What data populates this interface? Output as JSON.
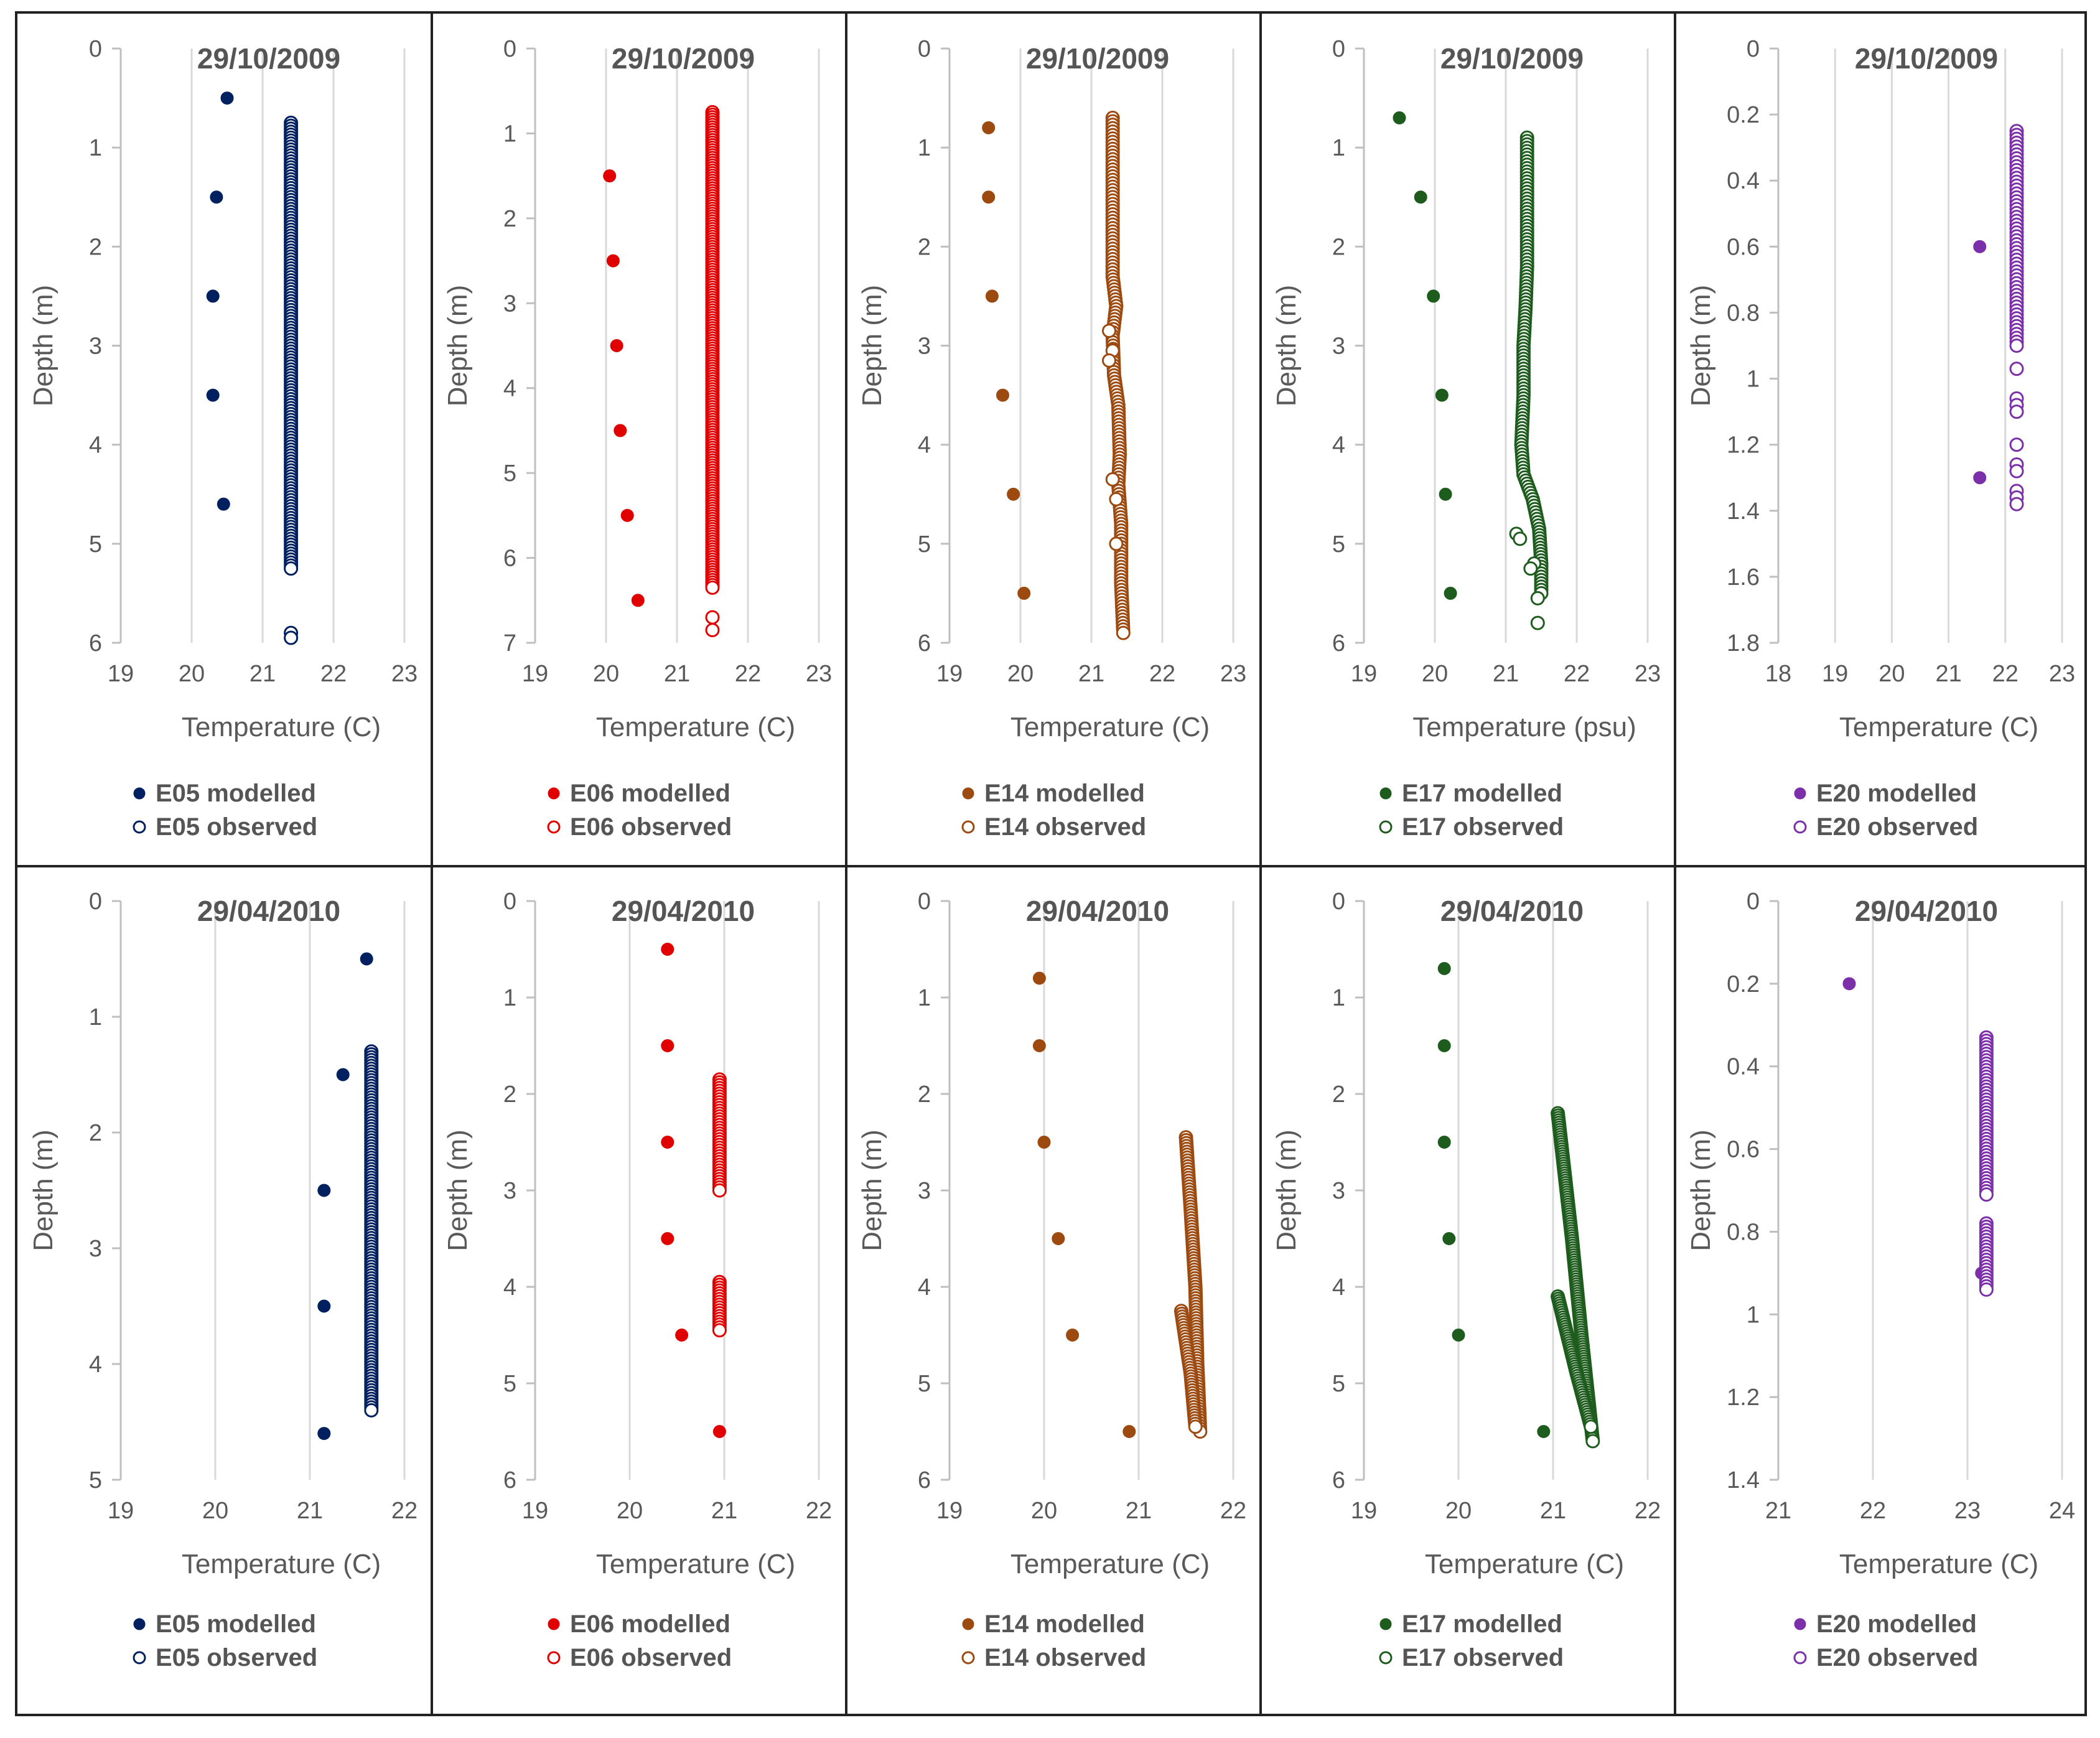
{
  "chart_data": [
    {
      "type": "scatter",
      "panel": "top-1",
      "title": "29/10/2009",
      "xlabel": "Temperature (C)",
      "ylabel": "Depth (m)",
      "xlim": [
        19,
        23
      ],
      "ylim": [
        0,
        6
      ],
      "y_inverted": true,
      "xticks": [
        "19",
        "20",
        "21",
        "22",
        "23"
      ],
      "yticks": [
        "0",
        "1",
        "2",
        "3",
        "4",
        "5",
        "6"
      ],
      "color": "#002060",
      "grid": "vertical",
      "series": [
        {
          "name": "E05 modelled",
          "marker": "filled",
          "points": [
            [
              20.5,
              0.5
            ],
            [
              20.35,
              1.5
            ],
            [
              20.3,
              2.5
            ],
            [
              20.3,
              3.5
            ],
            [
              20.45,
              4.6
            ]
          ]
        },
        {
          "name": "E05 observed",
          "marker": "open",
          "profile": [
            [
              21.4,
              0.75
            ],
            [
              21.4,
              5.25
            ]
          ],
          "step": 0.03,
          "extra_points": [
            [
              21.4,
              5.9
            ],
            [
              21.4,
              5.95
            ]
          ]
        }
      ],
      "legend": [
        "E05 modelled",
        "E05 observed"
      ]
    },
    {
      "type": "scatter",
      "panel": "top-2",
      "title": "29/10/2009",
      "xlabel": "Temperature (C)",
      "ylabel": "Depth (m)",
      "xlim": [
        19,
        23
      ],
      "ylim": [
        0,
        7
      ],
      "y_inverted": true,
      "xticks": [
        "19",
        "20",
        "21",
        "22",
        "23"
      ],
      "yticks": [
        "0",
        "1",
        "2",
        "3",
        "4",
        "5",
        "6",
        "7"
      ],
      "color": "#E00000",
      "grid": "vertical",
      "series": [
        {
          "name": "E06 modelled",
          "marker": "filled",
          "points": [
            [
              20.05,
              1.5
            ],
            [
              20.1,
              2.5
            ],
            [
              20.15,
              3.5
            ],
            [
              20.2,
              4.5
            ],
            [
              20.3,
              5.5
            ],
            [
              20.45,
              6.5
            ]
          ]
        },
        {
          "name": "E06 observed",
          "marker": "open",
          "profile": [
            [
              21.5,
              0.75
            ],
            [
              21.5,
              6.35
            ]
          ],
          "step": 0.03,
          "extra_points": [
            [
              21.5,
              6.7
            ],
            [
              21.5,
              6.85
            ]
          ]
        }
      ],
      "legend": [
        "E06 modelled",
        "E06 observed"
      ]
    },
    {
      "type": "scatter",
      "panel": "top-3",
      "title": "29/10/2009",
      "xlabel": "Temperature (C)",
      "ylabel": "Depth (m)",
      "xlim": [
        19,
        23
      ],
      "ylim": [
        0,
        6
      ],
      "y_inverted": true,
      "xticks": [
        "19",
        "20",
        "21",
        "22",
        "23"
      ],
      "yticks": [
        "0",
        "1",
        "2",
        "3",
        "4",
        "5",
        "6"
      ],
      "color": "#9C4A10",
      "grid": "vertical",
      "series": [
        {
          "name": "E14 modelled",
          "marker": "filled",
          "points": [
            [
              19.55,
              0.8
            ],
            [
              19.55,
              1.5
            ],
            [
              19.6,
              2.5
            ],
            [
              19.75,
              3.5
            ],
            [
              19.9,
              4.5
            ],
            [
              20.05,
              5.5
            ]
          ]
        },
        {
          "name": "E14 observed",
          "marker": "open",
          "profile": [
            [
              21.3,
              0.7
            ],
            [
              21.3,
              1.5
            ],
            [
              21.3,
              2.3
            ],
            [
              21.35,
              2.6
            ],
            [
              21.3,
              2.9
            ],
            [
              21.32,
              3.3
            ],
            [
              21.38,
              3.6
            ],
            [
              21.4,
              4.1
            ],
            [
              21.38,
              4.4
            ],
            [
              21.42,
              4.8
            ],
            [
              21.42,
              5.4
            ],
            [
              21.45,
              5.9
            ]
          ],
          "step": 0.035
        },
        {
          "name": "E14 observed (scatter)",
          "marker": "open",
          "points": [
            [
              21.25,
              2.85
            ],
            [
              21.3,
              3.05
            ],
            [
              21.25,
              3.15
            ],
            [
              21.3,
              4.35
            ],
            [
              21.35,
              4.55
            ],
            [
              21.35,
              5.0
            ]
          ]
        }
      ],
      "legend": [
        "E14 modelled",
        "E14 observed"
      ]
    },
    {
      "type": "scatter",
      "panel": "top-4",
      "title": "29/10/2009",
      "xlabel": "Temperature (psu)",
      "ylabel": "Depth (m)",
      "xlim": [
        19,
        23
      ],
      "ylim": [
        0,
        6
      ],
      "y_inverted": true,
      "xticks": [
        "19",
        "20",
        "21",
        "22",
        "23"
      ],
      "yticks": [
        "0",
        "1",
        "2",
        "3",
        "4",
        "5",
        "6"
      ],
      "color": "#1E5C1E",
      "grid": "vertical",
      "series": [
        {
          "name": "E17 modelled",
          "marker": "filled",
          "points": [
            [
              19.5,
              0.7
            ],
            [
              19.8,
              1.5
            ],
            [
              19.98,
              2.5
            ],
            [
              20.1,
              3.5
            ],
            [
              20.15,
              4.5
            ],
            [
              20.22,
              5.5
            ]
          ]
        },
        {
          "name": "E17 observed",
          "marker": "open",
          "profile": [
            [
              21.3,
              0.9
            ],
            [
              21.3,
              2.2
            ],
            [
              21.28,
              2.6
            ],
            [
              21.25,
              3.0
            ],
            [
              21.25,
              3.5
            ],
            [
              21.22,
              4.0
            ],
            [
              21.25,
              4.3
            ],
            [
              21.38,
              4.55
            ],
            [
              21.47,
              4.85
            ],
            [
              21.5,
              5.2
            ],
            [
              21.5,
              5.5
            ]
          ],
          "step": 0.035
        },
        {
          "name": "E17 observed (scatter)",
          "marker": "open",
          "points": [
            [
              21.15,
              4.9
            ],
            [
              21.2,
              4.95
            ],
            [
              21.4,
              5.2
            ],
            [
              21.35,
              5.25
            ],
            [
              21.45,
              5.55
            ],
            [
              21.45,
              5.8
            ]
          ]
        }
      ],
      "legend": [
        "E17 modelled",
        "E17 observed"
      ]
    },
    {
      "type": "scatter",
      "panel": "top-5",
      "title": "29/10/2009",
      "xlabel": "Temperature (C)",
      "ylabel": "Depth (m)",
      "xlim": [
        18,
        23
      ],
      "ylim": [
        0,
        1.8
      ],
      "y_inverted": true,
      "xticks": [
        "18",
        "19",
        "20",
        "21",
        "22",
        "23"
      ],
      "yticks": [
        "0",
        "0.2",
        "0.4",
        "0.6",
        "0.8",
        "1",
        "1.2",
        "1.4",
        "1.6",
        "1.8"
      ],
      "color": "#7B2FA8",
      "grid": "vertical",
      "series": [
        {
          "name": "E20 modelled",
          "marker": "filled",
          "points": [
            [
              21.55,
              0.6
            ],
            [
              21.55,
              1.3
            ]
          ]
        },
        {
          "name": "E20 observed",
          "marker": "open",
          "profile": [
            [
              22.2,
              0.25
            ],
            [
              22.2,
              0.9
            ]
          ],
          "step": 0.012,
          "extra_points": [
            [
              22.2,
              0.97
            ],
            [
              22.2,
              1.06
            ],
            [
              22.2,
              1.08
            ],
            [
              22.2,
              1.1
            ],
            [
              22.2,
              1.2
            ],
            [
              22.2,
              1.26
            ],
            [
              22.2,
              1.28
            ],
            [
              22.2,
              1.34
            ],
            [
              22.2,
              1.36
            ],
            [
              22.2,
              1.38
            ]
          ]
        }
      ],
      "legend": [
        "E20 modelled",
        "E20 observed"
      ]
    },
    {
      "type": "scatter",
      "panel": "bottom-1",
      "title": "29/04/2010",
      "xlabel": "Temperature (C)",
      "ylabel": "Depth (m)",
      "xlim": [
        19,
        22
      ],
      "ylim": [
        0,
        5
      ],
      "y_inverted": true,
      "xticks": [
        "19",
        "20",
        "21",
        "22"
      ],
      "yticks": [
        "0",
        "1",
        "2",
        "3",
        "4",
        "5"
      ],
      "color": "#002060",
      "grid": "vertical",
      "series": [
        {
          "name": "E05 modelled",
          "marker": "filled",
          "points": [
            [
              21.6,
              0.5
            ],
            [
              21.35,
              1.5
            ],
            [
              21.15,
              2.5
            ],
            [
              21.15,
              3.5
            ],
            [
              21.15,
              4.6
            ]
          ]
        },
        {
          "name": "E05 observed",
          "marker": "open",
          "profile": [
            [
              21.65,
              1.3
            ],
            [
              21.65,
              4.4
            ]
          ],
          "step": 0.025
        }
      ],
      "legend": [
        "E05 modelled",
        "E05 observed"
      ]
    },
    {
      "type": "scatter",
      "panel": "bottom-2",
      "title": "29/04/2010",
      "xlabel": "Temperature (C)",
      "ylabel": "Depth (m)",
      "xlim": [
        19,
        22
      ],
      "ylim": [
        0,
        6
      ],
      "y_inverted": true,
      "xticks": [
        "19",
        "20",
        "21",
        "22"
      ],
      "yticks": [
        "0",
        "1",
        "2",
        "3",
        "4",
        "5",
        "6"
      ],
      "color": "#E00000",
      "grid": "vertical",
      "series": [
        {
          "name": "E06 modelled",
          "marker": "filled",
          "points": [
            [
              20.4,
              0.5
            ],
            [
              20.4,
              1.5
            ],
            [
              20.4,
              2.5
            ],
            [
              20.4,
              3.5
            ],
            [
              20.55,
              4.5
            ],
            [
              20.95,
              5.5
            ]
          ]
        },
        {
          "name": "E06 observed",
          "marker": "open",
          "profile": [
            [
              20.95,
              1.85
            ],
            [
              20.95,
              3.0
            ]
          ],
          "step": 0.03,
          "extra_profile": [
            [
              20.95,
              3.95
            ],
            [
              20.95,
              4.45
            ]
          ]
        }
      ],
      "legend": [
        "E06 modelled",
        "E06 observed"
      ]
    },
    {
      "type": "scatter",
      "panel": "bottom-3",
      "title": "29/04/2010",
      "xlabel": "Temperature (C)",
      "ylabel": "Depth (m)",
      "xlim": [
        19,
        22
      ],
      "ylim": [
        0,
        6
      ],
      "y_inverted": true,
      "xticks": [
        "19",
        "20",
        "21",
        "22"
      ],
      "yticks": [
        "0",
        "1",
        "2",
        "3",
        "4",
        "5",
        "6"
      ],
      "color": "#9C4A10",
      "grid": "vertical",
      "series": [
        {
          "name": "E14 modelled",
          "marker": "filled",
          "points": [
            [
              19.95,
              0.8
            ],
            [
              19.95,
              1.5
            ],
            [
              20.0,
              2.5
            ],
            [
              20.15,
              3.5
            ],
            [
              20.3,
              4.5
            ],
            [
              20.9,
              5.5
            ]
          ]
        },
        {
          "name": "E14 observed",
          "marker": "open",
          "profile": [
            [
              21.5,
              2.45
            ],
            [
              21.55,
              3.2
            ],
            [
              21.6,
              4.0
            ],
            [
              21.62,
              4.8
            ],
            [
              21.65,
              5.5
            ]
          ],
          "step": 0.03,
          "extra_profile": [
            [
              21.45,
              4.25
            ],
            [
              21.55,
              4.9
            ],
            [
              21.6,
              5.45
            ]
          ]
        }
      ],
      "legend": [
        "E14 modelled",
        "E14 observed"
      ]
    },
    {
      "type": "scatter",
      "panel": "bottom-4",
      "title": "29/04/2010",
      "xlabel": "Temperature (C)",
      "ylabel": "Depth (m)",
      "xlim": [
        19,
        22
      ],
      "ylim": [
        0,
        6
      ],
      "y_inverted": true,
      "xticks": [
        "19",
        "20",
        "21",
        "22"
      ],
      "yticks": [
        "0",
        "1",
        "2",
        "3",
        "4",
        "5",
        "6"
      ],
      "color": "#1E5C1E",
      "grid": "vertical",
      "series": [
        {
          "name": "E17 modelled",
          "marker": "filled",
          "points": [
            [
              19.85,
              0.7
            ],
            [
              19.85,
              1.5
            ],
            [
              19.85,
              2.5
            ],
            [
              19.9,
              3.5
            ],
            [
              20.0,
              4.5
            ],
            [
              20.9,
              5.5
            ]
          ]
        },
        {
          "name": "E17 observed",
          "marker": "open",
          "profile": [
            [
              21.05,
              2.2
            ],
            [
              21.2,
              3.5
            ],
            [
              21.3,
              4.5
            ],
            [
              21.42,
              5.6
            ]
          ],
          "step": 0.025,
          "extra_profile": [
            [
              21.05,
              4.1
            ],
            [
              21.25,
              4.9
            ],
            [
              21.4,
              5.45
            ]
          ]
        }
      ],
      "legend": [
        "E17 modelled",
        "E17 observed"
      ]
    },
    {
      "type": "scatter",
      "panel": "bottom-5",
      "title": "29/04/2010",
      "xlabel": "Temperature (C)",
      "ylabel": "Depth (m)",
      "xlim": [
        21,
        24
      ],
      "ylim": [
        0,
        1.4
      ],
      "y_inverted": true,
      "xticks": [
        "21",
        "22",
        "23",
        "24"
      ],
      "yticks": [
        "0",
        "0.2",
        "0.4",
        "0.6",
        "0.8",
        "1",
        "1.2",
        "1.4"
      ],
      "color": "#7B2FA8",
      "grid": "vertical",
      "series": [
        {
          "name": "E20 modelled",
          "marker": "filled",
          "points": [
            [
              21.75,
              0.2
            ],
            [
              23.15,
              0.9
            ]
          ]
        },
        {
          "name": "E20 observed",
          "marker": "open",
          "profile": [
            [
              23.2,
              0.33
            ],
            [
              23.2,
              0.71
            ]
          ],
          "step": 0.008,
          "extra_profile": [
            [
              23.2,
              0.78
            ],
            [
              23.2,
              0.94
            ]
          ]
        }
      ],
      "legend": [
        "E20 modelled",
        "E20 observed"
      ]
    }
  ]
}
